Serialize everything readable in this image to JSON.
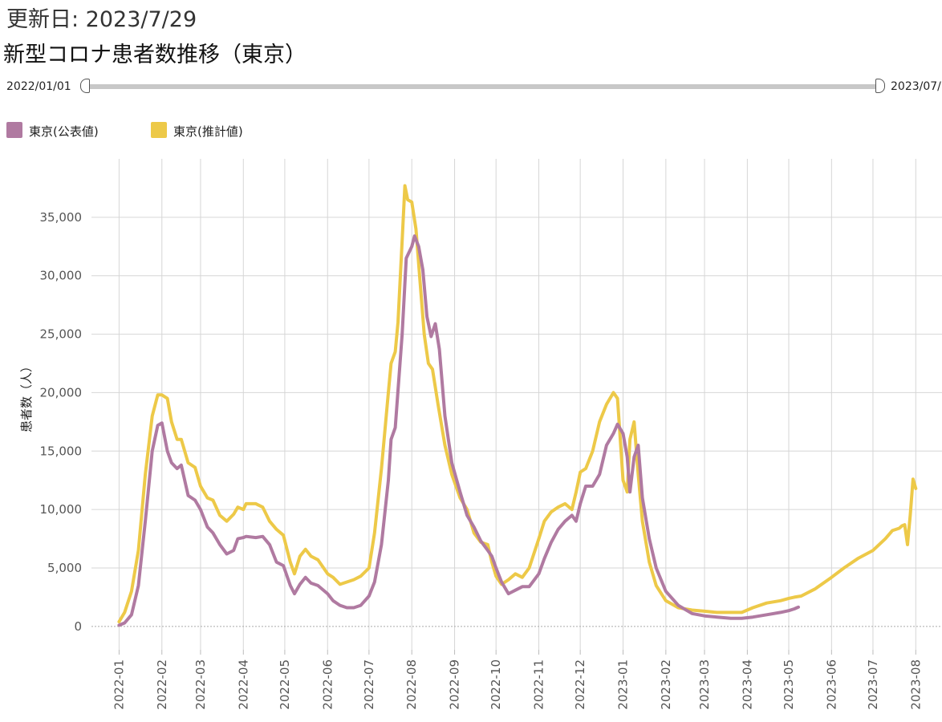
{
  "header": {
    "updated": "更新日: 2023/7/29",
    "title": "新型コロナ患者数推移（東京）"
  },
  "range_slider": {
    "start_label": "2022/01/01",
    "end_label": "2023/07/"
  },
  "chart_data": {
    "type": "line",
    "title": "新型コロナ患者数推移（東京）",
    "xlabel": "",
    "ylabel": "患者数（人）",
    "ylim": [
      -2000,
      40000
    ],
    "yticks": [
      0,
      5000,
      10000,
      15000,
      20000,
      25000,
      30000,
      35000
    ],
    "ytick_labels": [
      "0",
      "5,000",
      "10,000",
      "15,000",
      "20,000",
      "25,000",
      "30,000",
      "35,000"
    ],
    "xlim": [
      "2021-12-12",
      "2023-08-20"
    ],
    "xticks": [
      "2022-01",
      "2022-02",
      "2022-03",
      "2022-04",
      "2022-05",
      "2022-06",
      "2022-07",
      "2022-08",
      "2022-09",
      "2022-10",
      "2022-11",
      "2022-12",
      "2023-01",
      "2023-02",
      "2023-03",
      "2023-04",
      "2023-05",
      "2023-06",
      "2023-07",
      "2023-08"
    ],
    "grid": true,
    "legend": "top-left",
    "series": [
      {
        "name": "東京(公表値)",
        "color": "#b07aa1",
        "x": [
          "2022-01-01",
          "2022-01-05",
          "2022-01-10",
          "2022-01-15",
          "2022-01-20",
          "2022-01-25",
          "2022-01-29",
          "2022-02-01",
          "2022-02-05",
          "2022-02-08",
          "2022-02-12",
          "2022-02-15",
          "2022-02-20",
          "2022-02-25",
          "2022-03-01",
          "2022-03-06",
          "2022-03-10",
          "2022-03-15",
          "2022-03-20",
          "2022-03-25",
          "2022-03-28",
          "2022-04-01",
          "2022-04-03",
          "2022-04-10",
          "2022-04-15",
          "2022-04-20",
          "2022-04-25",
          "2022-04-30",
          "2022-05-05",
          "2022-05-08",
          "2022-05-12",
          "2022-05-16",
          "2022-05-20",
          "2022-05-25",
          "2022-06-01",
          "2022-06-05",
          "2022-06-10",
          "2022-06-15",
          "2022-06-20",
          "2022-06-25",
          "2022-07-01",
          "2022-07-05",
          "2022-07-10",
          "2022-07-15",
          "2022-07-17",
          "2022-07-20",
          "2022-07-25",
          "2022-07-28",
          "2022-08-01",
          "2022-08-03",
          "2022-08-06",
          "2022-08-09",
          "2022-08-12",
          "2022-08-15",
          "2022-08-18",
          "2022-08-21",
          "2022-08-25",
          "2022-08-30",
          "2022-09-05",
          "2022-09-10",
          "2022-09-15",
          "2022-09-20",
          "2022-09-25",
          "2022-09-28",
          "2022-10-01",
          "2022-10-05",
          "2022-10-10",
          "2022-10-15",
          "2022-10-20",
          "2022-10-25",
          "2022-11-01",
          "2022-11-05",
          "2022-11-10",
          "2022-11-15",
          "2022-11-20",
          "2022-11-25",
          "2022-11-28",
          "2022-12-01",
          "2022-12-05",
          "2022-12-10",
          "2022-12-15",
          "2022-12-20",
          "2022-12-25",
          "2022-12-28",
          "2023-01-01",
          "2023-01-04",
          "2023-01-06",
          "2023-01-09",
          "2023-01-12",
          "2023-01-15",
          "2023-01-20",
          "2023-01-25",
          "2023-02-01",
          "2023-02-10",
          "2023-02-20",
          "2023-03-01",
          "2023-03-10",
          "2023-03-20",
          "2023-03-28",
          "2023-04-05",
          "2023-04-15",
          "2023-04-25",
          "2023-05-01",
          "2023-05-05",
          "2023-05-07",
          "2023-05-08"
        ],
        "values": [
          100,
          300,
          1000,
          3500,
          9000,
          15000,
          17200,
          17400,
          15000,
          14000,
          13500,
          13800,
          11200,
          10800,
          10000,
          8500,
          8000,
          7000,
          6200,
          6500,
          7500,
          7600,
          7700,
          7600,
          7700,
          7000,
          5500,
          5200,
          3500,
          2800,
          3600,
          4200,
          3700,
          3500,
          2800,
          2200,
          1800,
          1600,
          1600,
          1800,
          2600,
          3800,
          7000,
          12500,
          16000,
          17000,
          25000,
          31500,
          32500,
          33400,
          32500,
          30500,
          26500,
          24800,
          25900,
          23700,
          18000,
          14000,
          11500,
          9500,
          8500,
          7300,
          6500,
          6000,
          5000,
          3800,
          2800,
          3100,
          3400,
          3400,
          4500,
          5800,
          7200,
          8300,
          9000,
          9500,
          9000,
          10500,
          12000,
          12000,
          13000,
          15500,
          16500,
          17300,
          16500,
          14500,
          11500,
          14500,
          15500,
          11000,
          7500,
          5000,
          3000,
          1800,
          1100,
          900,
          800,
          700,
          700,
          800,
          1000,
          1200,
          1350,
          1500,
          1600,
          1650
        ]
      },
      {
        "name": "東京(推計値)",
        "color": "#edc948",
        "x": [
          "2022-01-01",
          "2022-01-05",
          "2022-01-10",
          "2022-01-15",
          "2022-01-20",
          "2022-01-25",
          "2022-01-29",
          "2022-02-01",
          "2022-02-05",
          "2022-02-08",
          "2022-02-12",
          "2022-02-15",
          "2022-02-20",
          "2022-02-25",
          "2022-03-01",
          "2022-03-06",
          "2022-03-10",
          "2022-03-15",
          "2022-03-20",
          "2022-03-25",
          "2022-03-28",
          "2022-04-01",
          "2022-04-03",
          "2022-04-10",
          "2022-04-15",
          "2022-04-20",
          "2022-04-25",
          "2022-04-30",
          "2022-05-05",
          "2022-05-08",
          "2022-05-12",
          "2022-05-16",
          "2022-05-20",
          "2022-05-25",
          "2022-06-01",
          "2022-06-05",
          "2022-06-10",
          "2022-06-15",
          "2022-06-20",
          "2022-06-25",
          "2022-07-01",
          "2022-07-05",
          "2022-07-10",
          "2022-07-15",
          "2022-07-17",
          "2022-07-20",
          "2022-07-22",
          "2022-07-25",
          "2022-07-27",
          "2022-07-29",
          "2022-08-01",
          "2022-08-04",
          "2022-08-07",
          "2022-08-10",
          "2022-08-13",
          "2022-08-16",
          "2022-08-20",
          "2022-08-25",
          "2022-08-30",
          "2022-09-05",
          "2022-09-10",
          "2022-09-15",
          "2022-09-20",
          "2022-09-25",
          "2022-09-28",
          "2022-10-01",
          "2022-10-05",
          "2022-10-10",
          "2022-10-15",
          "2022-10-20",
          "2022-10-25",
          "2022-11-01",
          "2022-11-05",
          "2022-11-10",
          "2022-11-15",
          "2022-11-20",
          "2022-11-25",
          "2022-11-28",
          "2022-12-01",
          "2022-12-05",
          "2022-12-10",
          "2022-12-15",
          "2022-12-20",
          "2022-12-25",
          "2022-12-28",
          "2023-01-01",
          "2023-01-04",
          "2023-01-06",
          "2023-01-09",
          "2023-01-12",
          "2023-01-15",
          "2023-01-20",
          "2023-01-25",
          "2023-02-01",
          "2023-02-10",
          "2023-02-20",
          "2023-03-01",
          "2023-03-10",
          "2023-03-20",
          "2023-03-28",
          "2023-04-05",
          "2023-04-15",
          "2023-04-25",
          "2023-05-01",
          "2023-05-05",
          "2023-05-10",
          "2023-05-20",
          "2023-06-01",
          "2023-06-10",
          "2023-06-20",
          "2023-07-01",
          "2023-07-10",
          "2023-07-15",
          "2023-07-20",
          "2023-07-22",
          "2023-07-24",
          "2023-07-26",
          "2023-07-28",
          "2023-07-30",
          "2023-08-01"
        ],
        "values": [
          400,
          1200,
          3000,
          6500,
          13000,
          18000,
          19800,
          19800,
          19500,
          17500,
          16000,
          16000,
          14000,
          13600,
          12000,
          11000,
          10800,
          9500,
          9000,
          9600,
          10200,
          10000,
          10500,
          10500,
          10200,
          9000,
          8300,
          7800,
          5500,
          4500,
          6000,
          6600,
          6000,
          5700,
          4500,
          4200,
          3600,
          3800,
          4000,
          4300,
          5000,
          8000,
          13500,
          20000,
          22500,
          23500,
          26000,
          33000,
          37700,
          36500,
          36300,
          34000,
          29500,
          25000,
          22500,
          22000,
          19000,
          15500,
          13000,
          11000,
          10000,
          8000,
          7200,
          7000,
          5500,
          4300,
          3600,
          4000,
          4500,
          4200,
          5000,
          7500,
          9000,
          9800,
          10200,
          10500,
          10000,
          11500,
          13200,
          13500,
          15000,
          17500,
          19000,
          20000,
          19500,
          12500,
          11500,
          16000,
          17500,
          13000,
          9000,
          5500,
          3500,
          2200,
          1600,
          1400,
          1300,
          1200,
          1200,
          1200,
          1600,
          2000,
          2200,
          2400,
          2500,
          2600,
          3200,
          4200,
          5000,
          5800,
          6500,
          7500,
          8200,
          8400,
          8600,
          8700,
          7000,
          9500,
          12600,
          11800
        ]
      }
    ]
  }
}
